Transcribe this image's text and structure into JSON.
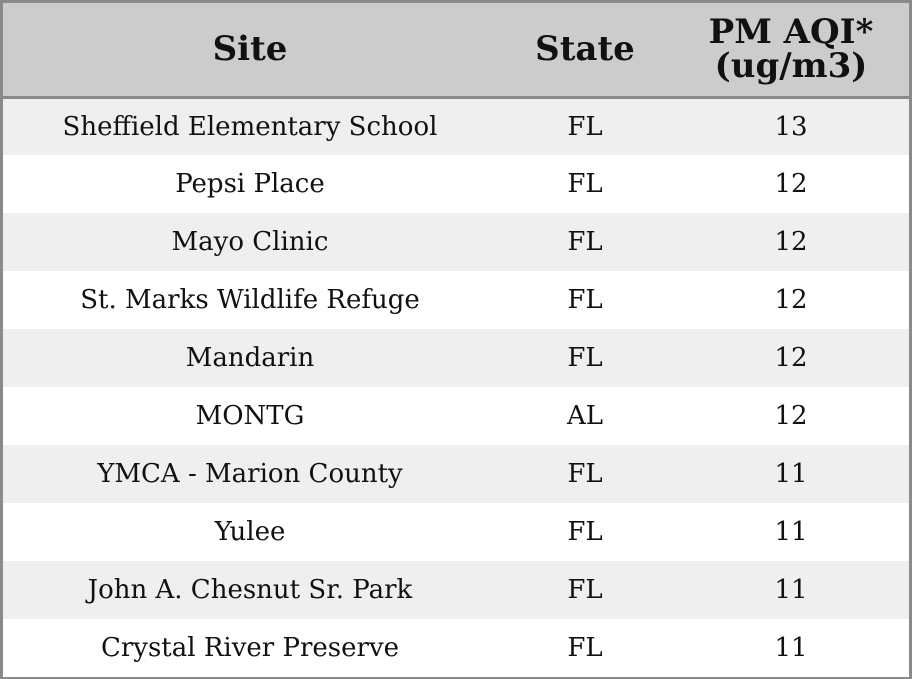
{
  "table": {
    "headers": {
      "site": "Site",
      "state": "State",
      "pm_line1": "PM AQI*",
      "pm_line2": "(ug/m3)"
    },
    "rows": [
      {
        "site": "Sheffield Elementary School",
        "state": "FL",
        "pm": "13"
      },
      {
        "site": "Pepsi Place",
        "state": "FL",
        "pm": "12"
      },
      {
        "site": "Mayo Clinic",
        "state": "FL",
        "pm": "12"
      },
      {
        "site": "St. Marks Wildlife Refuge",
        "state": "FL",
        "pm": "12"
      },
      {
        "site": "Mandarin",
        "state": "FL",
        "pm": "12"
      },
      {
        "site": "MONTG",
        "state": "AL",
        "pm": "12"
      },
      {
        "site": "YMCA - Marion County",
        "state": "FL",
        "pm": "11"
      },
      {
        "site": "Yulee",
        "state": "FL",
        "pm": "11"
      },
      {
        "site": "John A. Chesnut Sr. Park",
        "state": "FL",
        "pm": "11"
      },
      {
        "site": "Crystal River Preserve",
        "state": "FL",
        "pm": "11"
      }
    ]
  }
}
